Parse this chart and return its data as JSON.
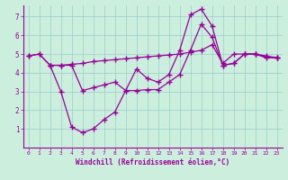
{
  "xlabel": "Windchill (Refroidissement éolien,°C)",
  "bg_color": "#cceedd",
  "line_color": "#990099",
  "grid_color": "#99cccc",
  "xlim": [
    -0.5,
    23.5
  ],
  "ylim": [
    0,
    7.6
  ],
  "xticks": [
    0,
    1,
    2,
    3,
    4,
    5,
    6,
    7,
    8,
    9,
    10,
    11,
    12,
    13,
    14,
    15,
    16,
    17,
    18,
    19,
    20,
    21,
    22,
    23
  ],
  "yticks": [
    1,
    2,
    3,
    4,
    5,
    6,
    7
  ],
  "line1_x": [
    0,
    1,
    2,
    3,
    4,
    5,
    6,
    7,
    8,
    9,
    10,
    11,
    12,
    13,
    14,
    15,
    16,
    17,
    18,
    19,
    20,
    21,
    22,
    23
  ],
  "line1_y": [
    4.9,
    5.0,
    4.4,
    4.4,
    4.45,
    4.5,
    4.6,
    4.65,
    4.7,
    4.75,
    4.8,
    4.85,
    4.9,
    4.95,
    5.0,
    5.1,
    5.2,
    5.5,
    4.5,
    5.0,
    5.0,
    5.0,
    4.9,
    4.8
  ],
  "line2_x": [
    0,
    1,
    2,
    3,
    4,
    5,
    6,
    7,
    8,
    9,
    10,
    11,
    12,
    13,
    14,
    15,
    16,
    17,
    18,
    19,
    20,
    21,
    22,
    23
  ],
  "line2_y": [
    4.9,
    5.0,
    4.4,
    3.0,
    1.1,
    0.8,
    1.0,
    1.5,
    1.9,
    3.05,
    4.2,
    3.7,
    3.5,
    3.9,
    5.2,
    7.1,
    7.4,
    6.5,
    4.4,
    4.5,
    5.0,
    5.0,
    4.8,
    4.8
  ],
  "line3_x": [
    2,
    3,
    4,
    5,
    6,
    7,
    8,
    9,
    10,
    11,
    12,
    13,
    14,
    15,
    16,
    17,
    18,
    19,
    20,
    21,
    22,
    23
  ],
  "line3_y": [
    4.4,
    4.4,
    4.4,
    3.05,
    3.2,
    3.35,
    3.5,
    3.05,
    3.05,
    3.1,
    3.1,
    3.5,
    3.9,
    5.2,
    6.6,
    5.9,
    4.4,
    4.5,
    5.0,
    5.0,
    4.85,
    4.8
  ]
}
